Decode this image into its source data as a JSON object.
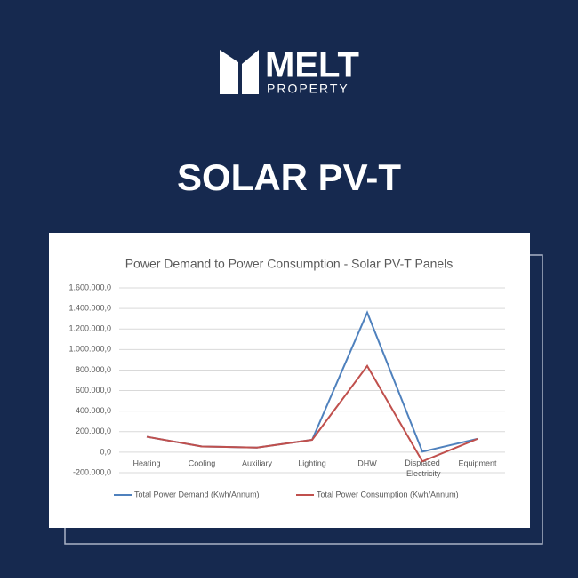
{
  "brand": {
    "name": "MELT",
    "tagline": "PROPERTY"
  },
  "headline": "SOLAR PV-T",
  "chart_data": {
    "type": "line",
    "title": "Power Demand to Power Consumption - Solar PV-T Panels",
    "categories": [
      "Heating",
      "Cooling",
      "Auxiliary",
      "Lighting",
      "DHW",
      "Displaced Electricity",
      "Equipment"
    ],
    "series": [
      {
        "name": "Total Power Demand (Kwh/Annum)",
        "color": "#4f81bd",
        "values": [
          150000,
          55000,
          45000,
          120000,
          1360000,
          5000,
          130000
        ]
      },
      {
        "name": "Total Power Consumption (Kwh/Annum)",
        "color": "#c0504d",
        "values": [
          150000,
          55000,
          45000,
          120000,
          840000,
          -90000,
          130000
        ]
      }
    ],
    "ylim": [
      -200000,
      1600000
    ],
    "yticks": [
      {
        "value": -200000,
        "label": "-200.000,0"
      },
      {
        "value": 0,
        "label": "0,0"
      },
      {
        "value": 200000,
        "label": "200.000,0"
      },
      {
        "value": 400000,
        "label": "400.000,0"
      },
      {
        "value": 600000,
        "label": "600.000,0"
      },
      {
        "value": 800000,
        "label": "800.000,0"
      },
      {
        "value": 1000000,
        "label": "1.000.000,0"
      },
      {
        "value": 1200000,
        "label": "1.200.000,0"
      },
      {
        "value": 1400000,
        "label": "1.400.000,0"
      },
      {
        "value": 1600000,
        "label": "1.600.000,0"
      }
    ],
    "grid": true,
    "legend": "bottom"
  }
}
